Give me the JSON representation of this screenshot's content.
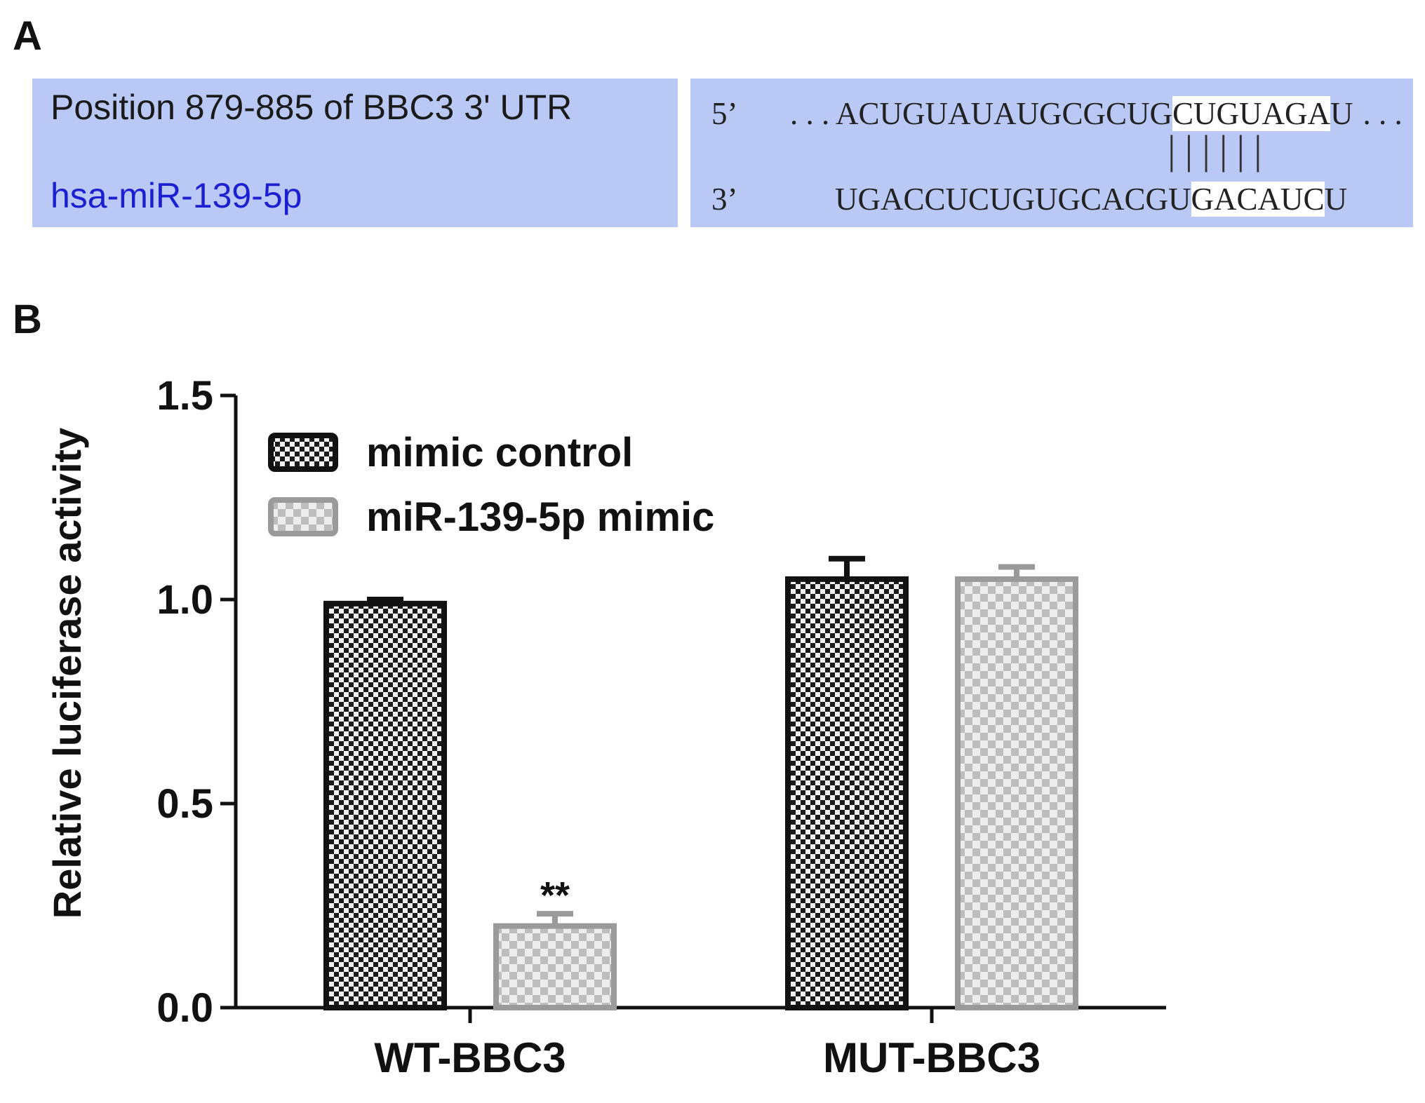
{
  "panel_a": {
    "letter": "A",
    "utr_label": "Position 879-885 of BBC3 3' UTR",
    "mir_label": "hsa-miR-139-5p",
    "prime5": "5’",
    "prime3": "3’",
    "seq_top_dots_left": ". . . ",
    "seq_top_plain": "ACUGUAUAUGCGCUG",
    "seq_top_highlight": "CUGUAGA",
    "seq_top_tail": "U",
    "seq_top_dots_right": ". . .",
    "pairing": "||||||",
    "seq_bottom_plain": "UGACCUCUGUGCACGU",
    "seq_bottom_highlight": "GACAUC",
    "seq_bottom_tail": "U"
  },
  "panel_b": {
    "letter": "B"
  },
  "colors": {
    "box": "#b9c8f5",
    "mir_text": "#1c1fd0",
    "control_dark": "#111111",
    "mimic_light": "#9a9a9a"
  },
  "chart_data": {
    "type": "bar",
    "categories": [
      "WT-BBC3",
      "MUT-BBC3"
    ],
    "series": [
      {
        "name": "mimic control",
        "values": [
          0.99,
          1.05
        ],
        "errors": [
          0.01,
          0.05
        ],
        "pattern": "dark-checker"
      },
      {
        "name": "miR-139-5p mimic",
        "values": [
          0.2,
          1.05
        ],
        "errors": [
          0.03,
          0.03
        ],
        "pattern": "light-checker"
      }
    ],
    "annotations": [
      {
        "category": "WT-BBC3",
        "series": "miR-139-5p mimic",
        "text": "**"
      }
    ],
    "ylabel": "Relative luciferase activity",
    "xlabel": "",
    "ylim": [
      0,
      1.5
    ],
    "yticks": [
      0.0,
      0.5,
      1.0,
      1.5
    ],
    "ytick_labels": [
      "0.0",
      "0.5",
      "1.0",
      "1.5"
    ],
    "legend_position": "top-left",
    "grid": false
  }
}
